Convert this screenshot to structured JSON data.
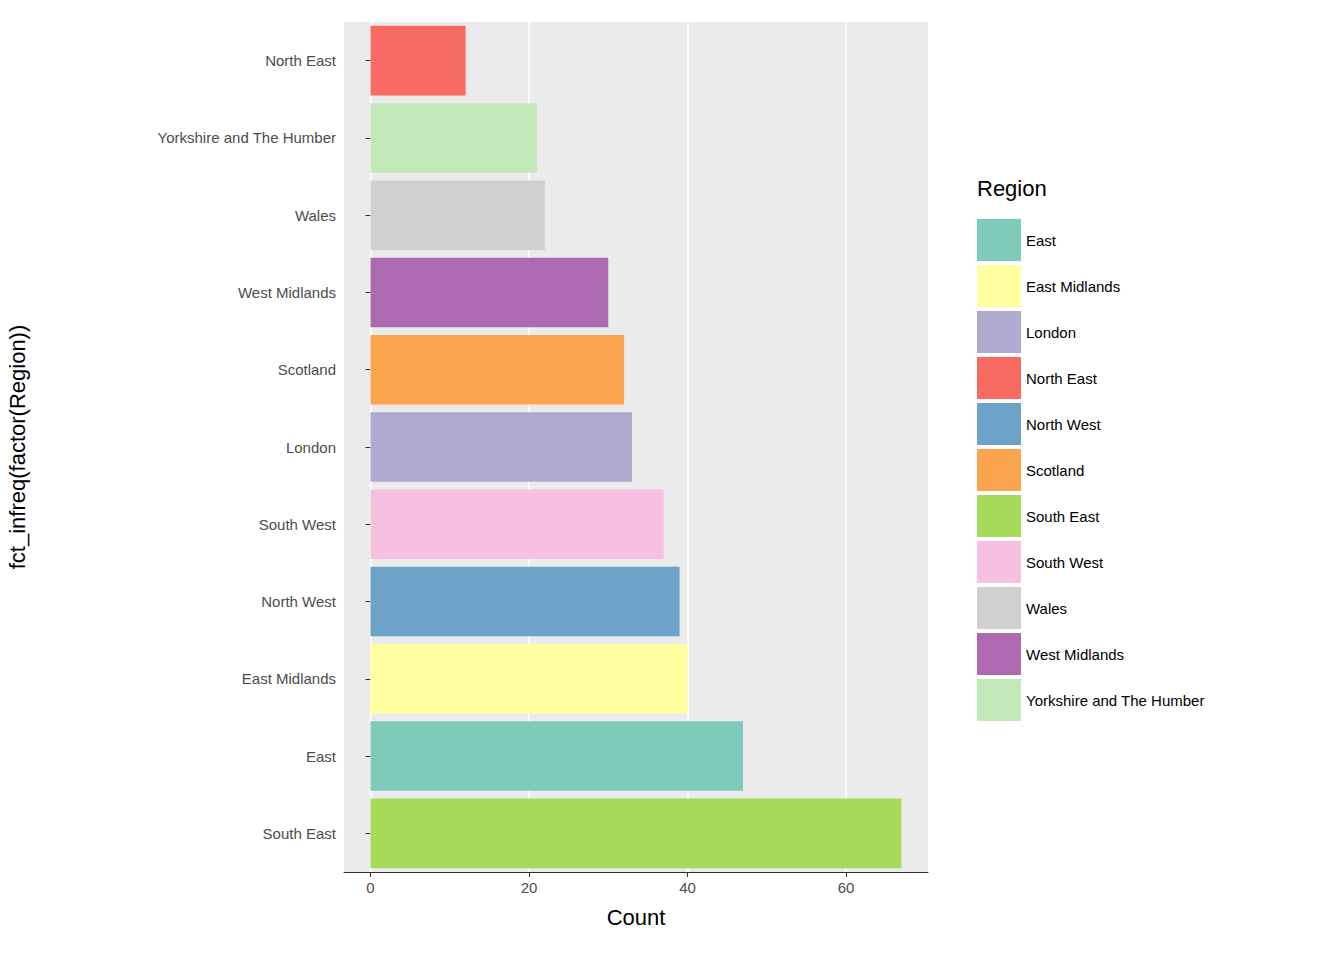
{
  "chart_data": {
    "type": "bar",
    "orientation": "horizontal",
    "x_label": "Count",
    "y_label": "fct_infreq(factor(Region))",
    "legend_title": "Region",
    "legend": "right",
    "grid": true,
    "categories": [
      "South East",
      "East",
      "East Midlands",
      "North West",
      "South West",
      "London",
      "Scotland",
      "West Midlands",
      "Wales",
      "Yorkshire and The Humber",
      "North East"
    ],
    "series": [
      {
        "name": "East",
        "color": "#7ecbb9",
        "values": [
          null,
          47,
          null,
          null,
          null,
          null,
          null,
          null,
          null,
          null,
          null
        ]
      },
      {
        "name": "East Midlands",
        "color": "#ffffa0",
        "values": [
          null,
          null,
          40,
          null,
          null,
          null,
          null,
          null,
          null,
          null,
          null
        ]
      },
      {
        "name": "London",
        "color": "#b1aacf",
        "values": [
          null,
          null,
          null,
          null,
          null,
          33,
          null,
          null,
          null,
          null,
          null
        ]
      },
      {
        "name": "North East",
        "color": "#f86b63",
        "values": [
          null,
          null,
          null,
          null,
          null,
          null,
          null,
          null,
          null,
          null,
          12
        ]
      },
      {
        "name": "North West",
        "color": "#6ea3c9",
        "values": [
          null,
          null,
          null,
          39,
          null,
          null,
          null,
          null,
          null,
          null,
          null
        ]
      },
      {
        "name": "Scotland",
        "color": "#fba64f",
        "values": [
          null,
          null,
          null,
          null,
          null,
          null,
          32,
          null,
          null,
          null,
          null
        ]
      },
      {
        "name": "South East",
        "color": "#a6da58",
        "values": [
          67,
          null,
          null,
          null,
          null,
          null,
          null,
          null,
          null,
          null,
          null
        ]
      },
      {
        "name": "South West",
        "color": "#f8c0e0",
        "values": [
          null,
          null,
          null,
          null,
          37,
          null,
          null,
          null,
          null,
          null,
          null
        ]
      },
      {
        "name": "Wales",
        "color": "#d0d0d0",
        "values": [
          null,
          null,
          null,
          null,
          null,
          null,
          null,
          null,
          22,
          null,
          null
        ]
      },
      {
        "name": "West Midlands",
        "color": "#ae6ab1",
        "values": [
          null,
          null,
          null,
          null,
          null,
          null,
          null,
          30,
          null,
          null,
          null
        ]
      },
      {
        "name": "Yorkshire and The Humber",
        "color": "#c3e8b8",
        "values": [
          null,
          null,
          null,
          null,
          null,
          null,
          null,
          null,
          null,
          21,
          null
        ]
      }
    ],
    "xlim": [
      -3.35,
      70.35
    ],
    "xticks": [
      0,
      20,
      40,
      60
    ]
  }
}
